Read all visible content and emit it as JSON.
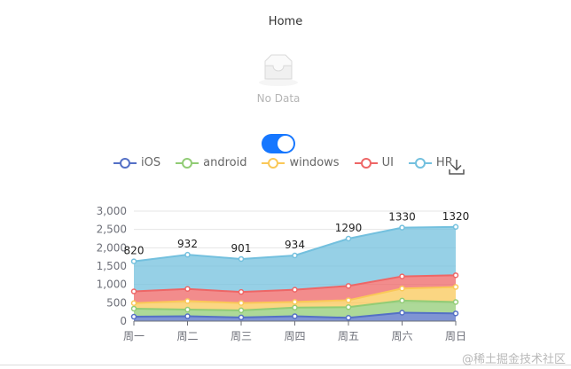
{
  "page": {
    "title": "Home"
  },
  "empty_state": {
    "icon": "empty-inbox-icon",
    "text": "No Data"
  },
  "toggle": {
    "on": true,
    "color": "#1677ff"
  },
  "legend": {
    "items": [
      {
        "label": "iOS",
        "color": "#5470c6"
      },
      {
        "label": "android",
        "color": "#91cc75"
      },
      {
        "label": "windows",
        "color": "#fac858"
      },
      {
        "label": "UI",
        "color": "#ee6666"
      },
      {
        "label": "HR",
        "color": "#73c0de"
      }
    ],
    "download_icon": "download-icon"
  },
  "chart_data": {
    "type": "area",
    "stacked": true,
    "categories": [
      "周一",
      "周二",
      "周三",
      "周四",
      "周五",
      "周六",
      "周日"
    ],
    "ylim": [
      0,
      3000
    ],
    "yticks": [
      "0",
      "500",
      "1,000",
      "1,500",
      "2,000",
      "2,500",
      "3,000"
    ],
    "series": [
      {
        "name": "iOS",
        "color": "#5470c6",
        "values": [
          120,
          132,
          101,
          134,
          90,
          230,
          210
        ]
      },
      {
        "name": "android",
        "color": "#91cc75",
        "values": [
          220,
          182,
          191,
          234,
          290,
          330,
          310
        ]
      },
      {
        "name": "windows",
        "color": "#fac858",
        "values": [
          150,
          232,
          201,
          154,
          190,
          330,
          410
        ]
      },
      {
        "name": "UI",
        "color": "#ee6666",
        "values": [
          320,
          332,
          301,
          334,
          390,
          330,
          320
        ]
      },
      {
        "name": "HR",
        "color": "#73c0de",
        "values": [
          820,
          932,
          901,
          934,
          1290,
          1330,
          1320
        ]
      }
    ],
    "top_labels": [
      "820",
      "932",
      "901",
      "934",
      "1290",
      "1330",
      "1320"
    ],
    "grid": true
  },
  "watermark": "@稀土掘金技术社区"
}
